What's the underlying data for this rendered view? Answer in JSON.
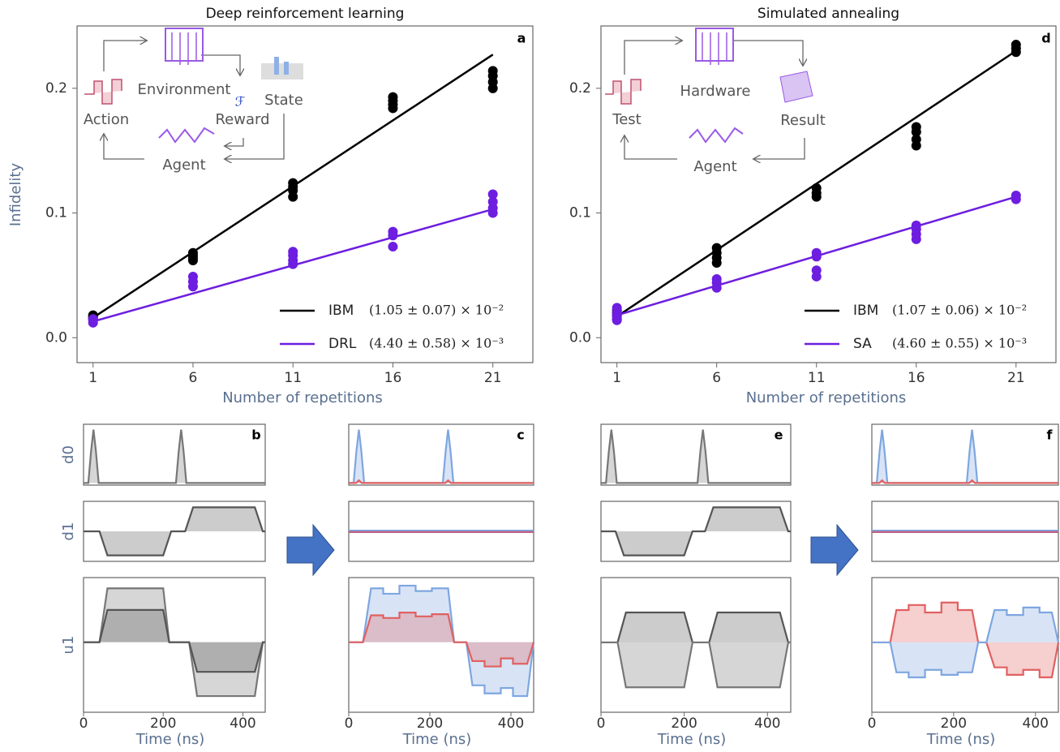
{
  "chart_data": [
    {
      "type": "scatter",
      "title": "Deep reinforcement learning",
      "panel_label": "a",
      "xlabel": "Number of repetitions",
      "ylabel": "Infidelity",
      "xlim": [
        0.2,
        23
      ],
      "xticks": [
        1,
        6,
        11,
        16,
        21
      ],
      "ylim": [
        -0.02,
        0.25
      ],
      "yticks": [
        {
          "value": 0,
          "label": "0.0"
        },
        0.1,
        0.2
      ],
      "inset_labels": [
        "Action",
        "Environment",
        "State",
        "Reward",
        "Agent"
      ],
      "reward_symbol": "ℱ",
      "series": [
        {
          "name": "IBM",
          "color": "#000000",
          "fit_label": "(1.05 ± 0.07) × 10⁻²",
          "x": [
            1,
            1,
            1,
            1,
            6,
            6,
            6,
            6,
            11,
            11,
            11,
            11,
            16,
            16,
            16,
            16,
            21,
            21,
            21,
            21
          ],
          "values": [
            0.015,
            0.016,
            0.017,
            0.018,
            0.062,
            0.064,
            0.066,
            0.068,
            0.113,
            0.118,
            0.121,
            0.124,
            0.184,
            0.187,
            0.19,
            0.193,
            0.2,
            0.205,
            0.21,
            0.214
          ],
          "fit": {
            "x": [
              1,
              21
            ],
            "values": [
              0.016,
              0.227
            ]
          }
        },
        {
          "name": "DRL",
          "color": "#6d1ee0",
          "fit_label": "(4.40 ± 0.58) × 10⁻³",
          "x": [
            1,
            1,
            1,
            6,
            6,
            6,
            11,
            11,
            11,
            11,
            16,
            16,
            16,
            21,
            21,
            21,
            21
          ],
          "values": [
            0.012,
            0.014,
            0.015,
            0.041,
            0.045,
            0.049,
            0.059,
            0.062,
            0.066,
            0.069,
            0.073,
            0.082,
            0.085,
            0.1,
            0.104,
            0.109,
            0.115
          ],
          "fit": {
            "x": [
              1,
              21
            ],
            "values": [
              0.013,
              0.103
            ]
          }
        }
      ]
    },
    {
      "type": "scatter",
      "title": "Simulated annealing",
      "panel_label": "d",
      "xlabel": "Number of repetitions",
      "xlim": [
        0.2,
        23
      ],
      "xticks": [
        1,
        6,
        11,
        16,
        21
      ],
      "ylim": [
        -0.02,
        0.25
      ],
      "yticks": [
        {
          "value": 0,
          "label": "0.0"
        },
        0.1,
        0.2
      ],
      "inset_labels": [
        "Test",
        "Hardware",
        "Result",
        "Agent"
      ],
      "series": [
        {
          "name": "IBM",
          "color": "#000000",
          "fit_label": "(1.07 ± 0.06) × 10⁻²",
          "x": [
            1,
            1,
            1,
            1,
            6,
            6,
            6,
            6,
            11,
            11,
            11,
            16,
            16,
            16,
            16,
            21,
            21,
            21
          ],
          "values": [
            0.015,
            0.018,
            0.02,
            0.022,
            0.06,
            0.064,
            0.068,
            0.072,
            0.113,
            0.116,
            0.12,
            0.154,
            0.159,
            0.165,
            0.169,
            0.229,
            0.232,
            0.235
          ],
          "fit": {
            "x": [
              1,
              21
            ],
            "values": [
              0.017,
              0.23
            ]
          }
        },
        {
          "name": "SA",
          "color": "#6d1ee0",
          "fit_label": "(4.60 ± 0.55) × 10⁻³",
          "x": [
            1,
            1,
            1,
            1,
            6,
            6,
            6,
            11,
            11,
            11,
            11,
            16,
            16,
            16,
            16,
            21,
            21
          ],
          "values": [
            0.014,
            0.017,
            0.02,
            0.024,
            0.04,
            0.044,
            0.047,
            0.049,
            0.054,
            0.065,
            0.068,
            0.079,
            0.083,
            0.087,
            0.09,
            0.111,
            0.114
          ],
          "fit": {
            "x": [
              1,
              21
            ],
            "values": [
              0.018,
              0.113
            ]
          }
        }
      ]
    },
    {
      "type": "line",
      "panel_label": "b",
      "xlabel": "Time (ns)",
      "xlim": [
        0,
        456
      ],
      "xticks": [
        0,
        200,
        400
      ],
      "channels": [
        {
          "name": "d0",
          "ylim": [
            -0.04,
            1.1
          ],
          "series": [
            {
              "color": "#777777",
              "x": [
                0,
                12,
                19,
                25,
                31,
                38,
                225,
                232,
                239,
                245,
                251,
                258,
                456
              ],
              "values": [
                0,
                0,
                0.6,
                1,
                0.6,
                0,
                0,
                0,
                0.6,
                1,
                0.6,
                0,
                0
              ]
            }
          ]
        },
        {
          "name": "d1",
          "ylim": [
            -1.25,
            1.25
          ],
          "series": [
            {
              "color": "#555555",
              "x": [
                0,
                40,
                60,
                200,
                220,
                255,
                275,
                430,
                450,
                456
              ],
              "values": [
                0,
                0,
                -1,
                -1,
                0,
                0,
                1,
                1,
                0,
                0
              ]
            }
          ]
        },
        {
          "name": "u1",
          "ylim": [
            -1.3,
            1.2
          ],
          "series": [
            {
              "color": "#777777",
              "x": [
                0,
                40,
                60,
                200,
                215,
                265,
                285,
                430,
                450,
                456
              ],
              "values": [
                0,
                0,
                1,
                1,
                0,
                0,
                -1,
                -1,
                0,
                0
              ]
            },
            {
              "color": "#555555",
              "x": [
                0,
                40,
                60,
                200,
                215,
                265,
                285,
                430,
                450,
                456
              ],
              "values": [
                0,
                0,
                0.6,
                0.6,
                0,
                0,
                -0.55,
                -0.55,
                0,
                0
              ]
            }
          ]
        }
      ]
    },
    {
      "type": "line",
      "panel_label": "c",
      "xlabel": "Time (ns)",
      "xlim": [
        0,
        456
      ],
      "xticks": [
        0,
        200,
        400
      ],
      "channels": [
        {
          "ylim": [
            -0.04,
            1.1
          ],
          "series": [
            {
              "color": "#7ea6e0",
              "x": [
                0,
                12,
                19,
                25,
                31,
                38,
                225,
                232,
                239,
                245,
                251,
                258,
                456
              ],
              "values": [
                0,
                0,
                0.6,
                1,
                0.6,
                0,
                0,
                0,
                0.6,
                1,
                0.6,
                0,
                0
              ]
            },
            {
              "color": "#e06060",
              "x": [
                0,
                18,
                25,
                32,
                238,
                245,
                252,
                456
              ],
              "values": [
                0,
                0,
                0.05,
                0,
                0,
                0.05,
                0,
                0
              ]
            }
          ]
        },
        {
          "ylim": [
            -1.25,
            1.25
          ],
          "series": [
            {
              "color": "#7ea6e0",
              "x": [
                0,
                456
              ],
              "values": [
                0.03,
                0.03
              ]
            },
            {
              "color": "#c06080",
              "x": [
                0,
                456
              ],
              "values": [
                -0.03,
                -0.03
              ]
            }
          ]
        },
        {
          "ylim": [
            -1.3,
            1.2
          ],
          "series": [
            {
              "color": "#7ea6e0",
              "x": [
                0,
                35,
                55,
                85,
                85,
                125,
                125,
                165,
                165,
                205,
                205,
                245,
                260,
                290,
                305,
                335,
                335,
                375,
                375,
                405,
                405,
                440,
                456
              ],
              "values": [
                0,
                0,
                1.0,
                1.0,
                0.9,
                0.9,
                1.05,
                1.05,
                0.95,
                0.95,
                1.0,
                1.0,
                0,
                0,
                -0.8,
                -0.8,
                -0.95,
                -0.95,
                -0.85,
                -0.85,
                -1.0,
                -1.0,
                0
              ]
            },
            {
              "color": "#e06060",
              "x": [
                0,
                35,
                55,
                85,
                85,
                125,
                125,
                165,
                165,
                205,
                205,
                245,
                260,
                290,
                305,
                335,
                335,
                375,
                375,
                405,
                405,
                440,
                456
              ],
              "values": [
                0,
                0,
                0.5,
                0.5,
                0.45,
                0.45,
                0.55,
                0.55,
                0.48,
                0.48,
                0.52,
                0.52,
                0,
                0,
                -0.35,
                -0.35,
                -0.45,
                -0.45,
                -0.3,
                -0.3,
                -0.4,
                -0.4,
                0
              ]
            }
          ]
        }
      ]
    },
    {
      "type": "line",
      "panel_label": "e",
      "xlabel": "Time (ns)",
      "xlim": [
        0,
        456
      ],
      "xticks": [
        0,
        200,
        400
      ],
      "channels": [
        {
          "ylim": [
            -0.04,
            1.1
          ],
          "series": [
            {
              "color": "#777777",
              "x": [
                0,
                12,
                19,
                25,
                31,
                38,
                225,
                232,
                239,
                245,
                251,
                258,
                456
              ],
              "values": [
                0,
                0,
                0.6,
                1,
                0.6,
                0,
                0,
                0,
                0.6,
                1,
                0.6,
                0,
                0
              ]
            }
          ]
        },
        {
          "ylim": [
            -1.25,
            1.25
          ],
          "series": [
            {
              "color": "#555555",
              "x": [
                0,
                35,
                55,
                200,
                220,
                250,
                270,
                430,
                450,
                456
              ],
              "values": [
                0,
                0,
                -1,
                -1,
                0,
                0,
                1,
                1,
                0,
                0
              ]
            }
          ]
        },
        {
          "ylim": [
            -1.4,
            1.3
          ],
          "series": [
            {
              "color": "#555555",
              "x": [
                0,
                40,
                60,
                200,
                220,
                260,
                280,
                430,
                450,
                456
              ],
              "values": [
                0,
                0,
                0.6,
                0.6,
                0,
                0,
                0.6,
                0.6,
                0,
                0
              ]
            },
            {
              "color": "#777777",
              "x": [
                0,
                40,
                60,
                200,
                220,
                260,
                280,
                430,
                450,
                456
              ],
              "values": [
                0,
                0,
                -0.9,
                -0.9,
                0,
                0,
                -0.9,
                -0.9,
                0,
                0
              ]
            }
          ]
        }
      ]
    },
    {
      "type": "line",
      "panel_label": "f",
      "xlabel": "Time (ns)",
      "xlim": [
        0,
        456
      ],
      "xticks": [
        0,
        200,
        400
      ],
      "channels": [
        {
          "ylim": [
            -0.04,
            1.1
          ],
          "series": [
            {
              "color": "#7ea6e0",
              "x": [
                0,
                12,
                19,
                25,
                31,
                38,
                225,
                232,
                239,
                245,
                251,
                258,
                456
              ],
              "values": [
                0,
                0,
                0.6,
                1,
                0.6,
                0,
                0,
                0,
                0.6,
                1,
                0.6,
                0,
                0
              ]
            },
            {
              "color": "#e06060",
              "x": [
                0,
                18,
                25,
                32,
                238,
                245,
                252,
                456
              ],
              "values": [
                0,
                0,
                0.05,
                0,
                0,
                0.05,
                0,
                0
              ]
            }
          ]
        },
        {
          "ylim": [
            -1.25,
            1.25
          ],
          "series": [
            {
              "color": "#7ea6e0",
              "x": [
                0,
                456
              ],
              "values": [
                0.03,
                0.03
              ]
            },
            {
              "color": "#c06080",
              "x": [
                0,
                456
              ],
              "values": [
                -0.03,
                -0.03
              ]
            }
          ]
        },
        {
          "ylim": [
            -1.4,
            1.3
          ],
          "series": [
            {
              "color": "#e06060",
              "x": [
                0,
                45,
                60,
                90,
                90,
                130,
                130,
                170,
                170,
                210,
                210,
                245,
                260,
                280,
                300,
                330,
                330,
                370,
                370,
                410,
                410,
                440,
                456
              ],
              "values": [
                0,
                0,
                0.65,
                0.65,
                0.75,
                0.75,
                0.6,
                0.6,
                0.8,
                0.8,
                0.65,
                0.65,
                0,
                0,
                -0.5,
                -0.5,
                -0.65,
                -0.65,
                -0.55,
                -0.55,
                -0.7,
                -0.7,
                0
              ]
            },
            {
              "color": "#7ea6e0",
              "x": [
                0,
                45,
                60,
                90,
                90,
                130,
                130,
                170,
                170,
                210,
                210,
                245,
                260,
                280,
                300,
                330,
                330,
                370,
                370,
                410,
                410,
                440,
                456
              ],
              "values": [
                0,
                0,
                -0.6,
                -0.6,
                -0.7,
                -0.7,
                -0.55,
                -0.55,
                -0.65,
                -0.65,
                -0.6,
                -0.6,
                0,
                0,
                0.65,
                0.65,
                0.55,
                0.55,
                0.7,
                0.7,
                0.6,
                0.6,
                0
              ]
            }
          ]
        }
      ]
    }
  ]
}
